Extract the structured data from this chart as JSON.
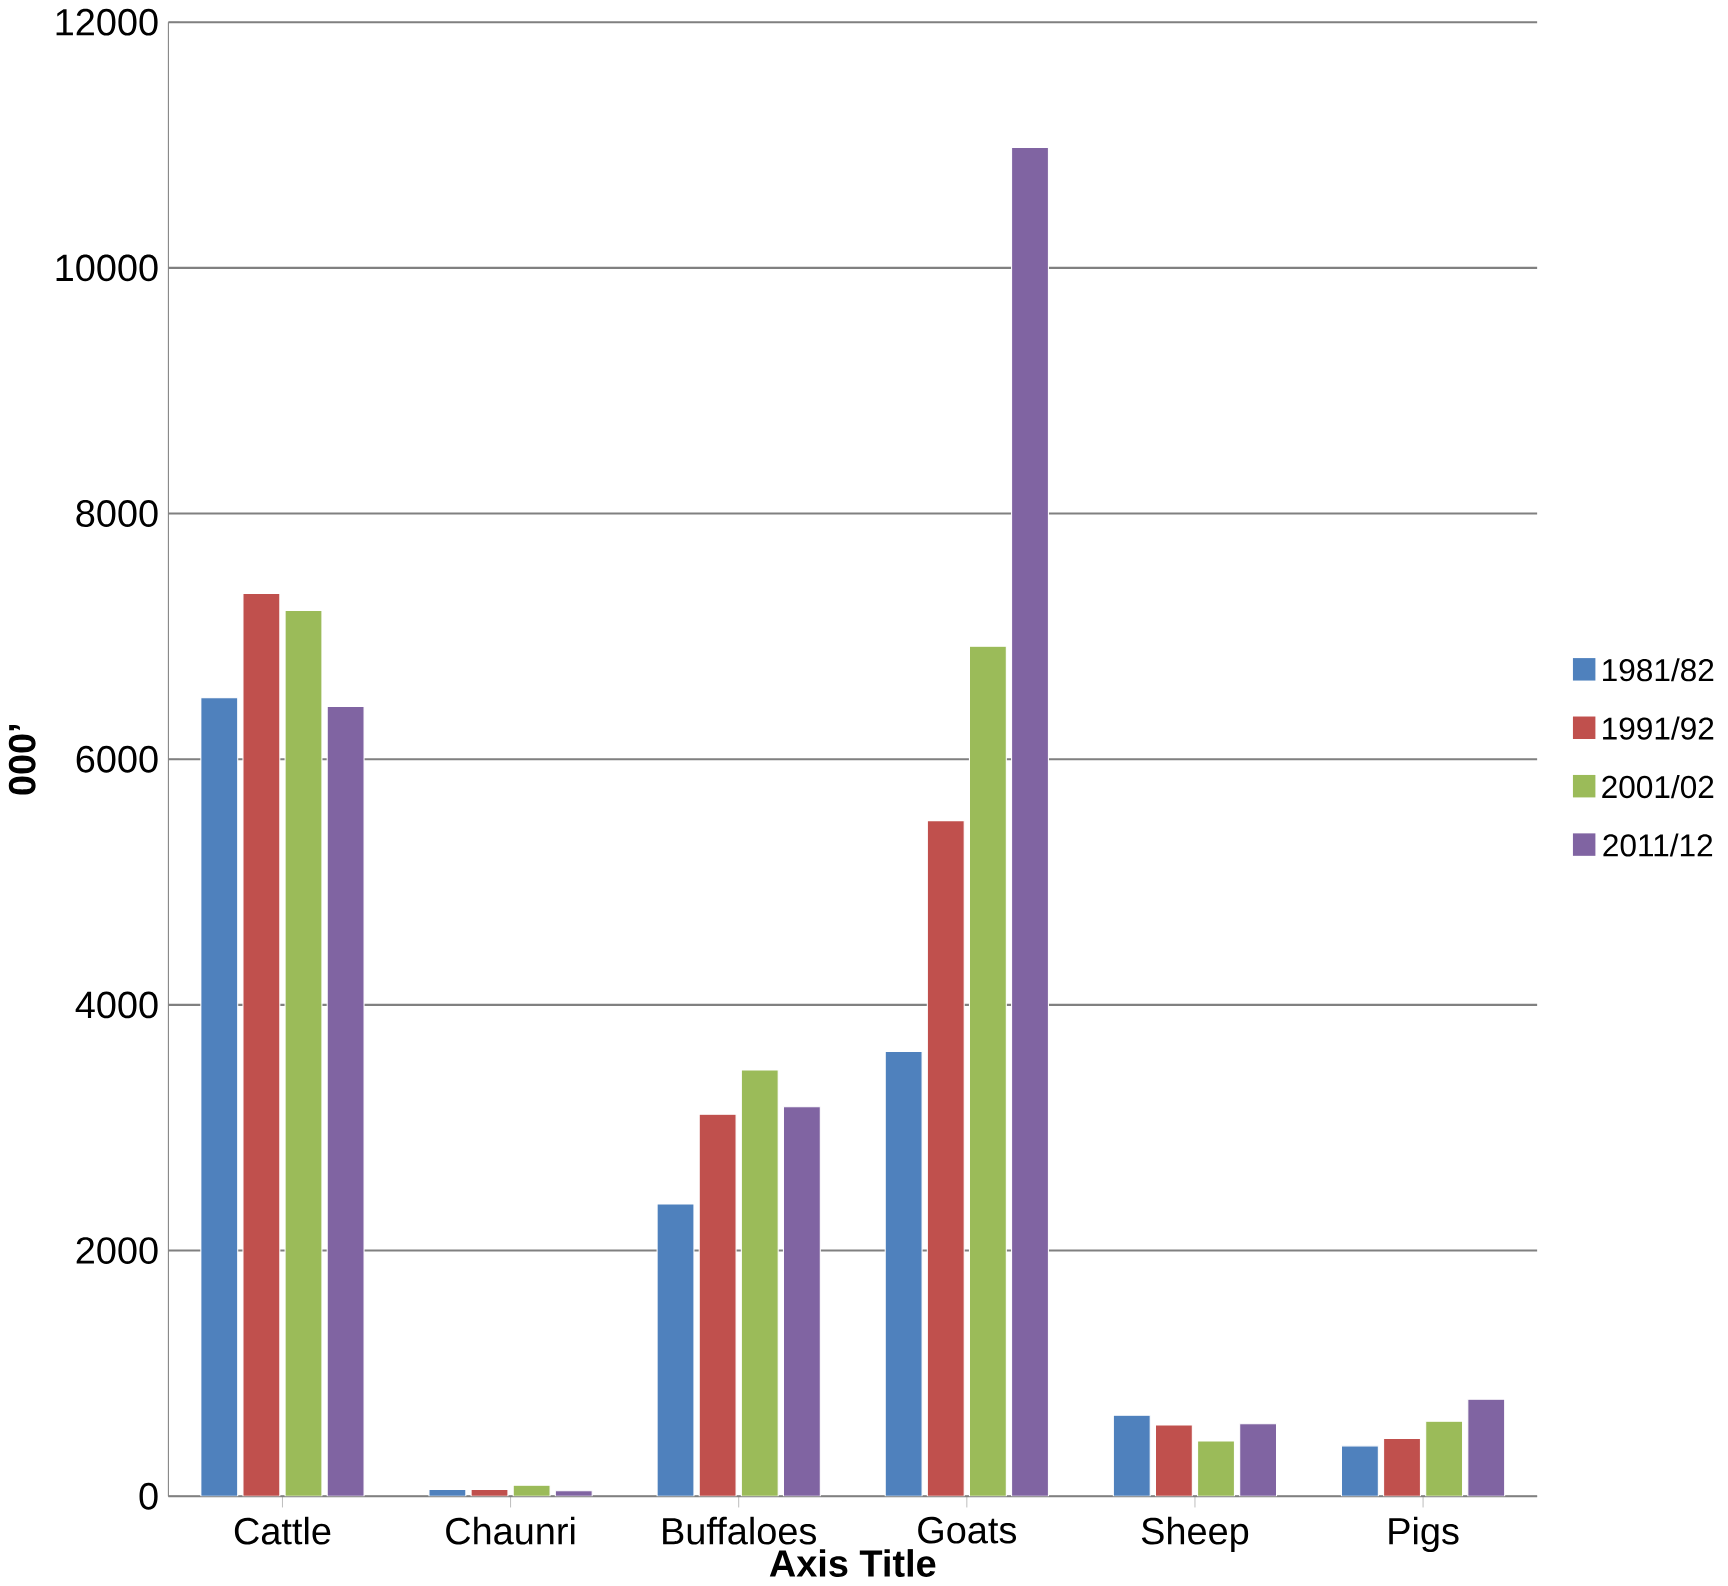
{
  "chart_data": {
    "type": "bar",
    "xlabel": "Axis Title",
    "ylabel": "000’",
    "categories": [
      "Cattle",
      "Chaunri",
      "Buffaloes",
      "Goats",
      "Sheep",
      "Pigs"
    ],
    "series": [
      {
        "name": "1981/82",
        "color": "#4f81bd",
        "values": [
          6500,
          55,
          2380,
          3620,
          660,
          410
        ]
      },
      {
        "name": "1991/92",
        "color": "#c0504d",
        "values": [
          7350,
          55,
          3110,
          5500,
          580,
          470
        ]
      },
      {
        "name": "2001/02",
        "color": "#9bbb59",
        "values": [
          7210,
          90,
          3470,
          6920,
          450,
          610
        ]
      },
      {
        "name": "2011/12",
        "color": "#8064a2",
        "values": [
          6430,
          45,
          3170,
          10980,
          590,
          790
        ]
      }
    ],
    "ylim": [
      0,
      12000
    ],
    "yticks": [
      0,
      2000,
      4000,
      6000,
      8000,
      10000,
      12000
    ],
    "grid": "y",
    "legend": "right"
  }
}
